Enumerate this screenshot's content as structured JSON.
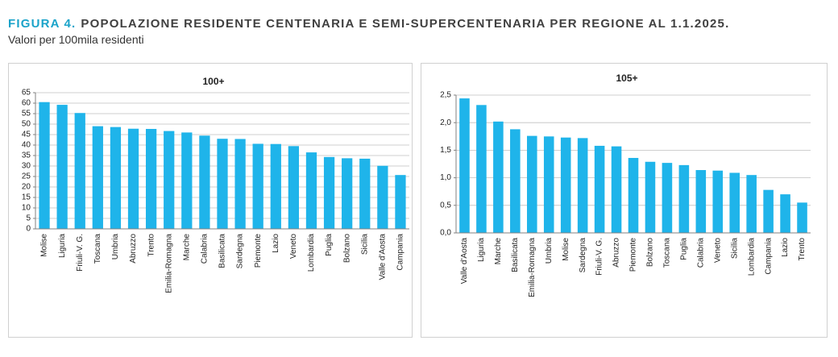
{
  "figure_label": "FIGURA 4.",
  "title": "POPOLAZIONE RESIDENTE CENTENARIA E SEMI-SUPERCENTENARIA PER REGIONE AL 1.1.2025.",
  "subtitle": "Valori per 100mila residenti",
  "chart_data": [
    {
      "type": "bar",
      "title": "100+",
      "color": "#1fb4ea",
      "grid": true,
      "categories": [
        "Molise",
        "Liguria",
        "Friuli-V. G.",
        "Toscana",
        "Umbria",
        "Abruzzo",
        "Trento",
        "Emilia-Romagna",
        "Marche",
        "Calabria",
        "Basilicata",
        "Sardegna",
        "Piemonte",
        "Lazio",
        "Veneto",
        "Lombardia",
        "Puglia",
        "Bolzano",
        "Sicilia",
        "Valle d'Aosta",
        "Campania"
      ],
      "values": [
        60.5,
        59.2,
        55.3,
        49,
        48.6,
        47.8,
        47.7,
        46.7,
        46,
        44.5,
        43,
        42.9,
        40.6,
        40.5,
        39.5,
        36.5,
        34.3,
        33.7,
        33.5,
        30.1,
        25.7
      ],
      "ylim": [
        0,
        65
      ],
      "yticks": [
        0,
        5,
        10,
        15,
        20,
        25,
        30,
        35,
        40,
        45,
        50,
        55,
        60,
        65
      ]
    },
    {
      "type": "bar",
      "title": "105+",
      "color": "#1fb4ea",
      "grid": true,
      "categories": [
        "Valle d'Aosta",
        "Liguria",
        "Marche",
        "Basilicata",
        "Emilia-Romagna",
        "Umbria",
        "Molise",
        "Sardegna",
        "Friuli-V. G.",
        "Abruzzo",
        "Piemonte",
        "Bolzano",
        "Toscana",
        "Puglia",
        "Calabria",
        "Veneto",
        "Sicilia",
        "Lombardia",
        "Campania",
        "Lazio",
        "Trento"
      ],
      "values": [
        2.44,
        2.32,
        2.02,
        1.88,
        1.76,
        1.75,
        1.73,
        1.72,
        1.58,
        1.57,
        1.36,
        1.29,
        1.27,
        1.23,
        1.14,
        1.13,
        1.09,
        1.05,
        0.78,
        0.7,
        0.55
      ],
      "ylim": [
        0,
        2.5
      ],
      "yticks": [
        {
          "value": 0,
          "label": "0,0"
        },
        {
          "value": 0.5,
          "label": "0,5"
        },
        {
          "value": 1,
          "label": "1,0"
        },
        {
          "value": 1.5,
          "label": "1,5"
        },
        {
          "value": 2,
          "label": "2,0"
        },
        {
          "value": 2.5,
          "label": "2,5"
        }
      ]
    }
  ]
}
